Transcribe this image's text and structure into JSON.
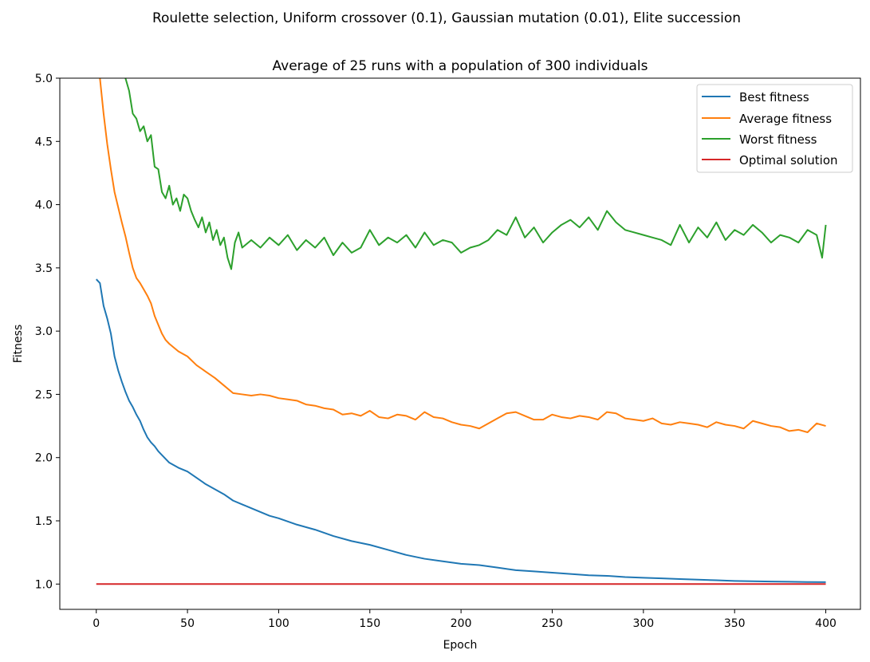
{
  "figure": {
    "suptitle": "Roulette selection, Uniform crossover (0.1), Gaussian mutation (0.01), Elite succession"
  },
  "chart_data": {
    "type": "line",
    "title": "Average of 25 runs with a population of 300 individuals",
    "xlabel": "Epoch",
    "ylabel": "Fitness",
    "xlim": [
      -20,
      419
    ],
    "ylim": [
      0.8,
      5.0
    ],
    "xticks": [
      0,
      50,
      100,
      150,
      200,
      250,
      300,
      350,
      400
    ],
    "yticks": [
      1.0,
      1.5,
      2.0,
      2.5,
      3.0,
      3.5,
      4.0,
      4.5,
      5.0
    ],
    "xtick_labels": [
      "0",
      "50",
      "100",
      "150",
      "200",
      "250",
      "300",
      "350",
      "400"
    ],
    "ytick_labels": [
      "1.0",
      "1.5",
      "2.0",
      "2.5",
      "3.0",
      "3.5",
      "4.0",
      "4.5",
      "5.0"
    ],
    "grid": false,
    "legend_position": "top-right",
    "series": [
      {
        "name": "Best fitness",
        "color": "#1f77b4",
        "x": [
          0,
          2,
          4,
          6,
          8,
          10,
          12,
          14,
          16,
          18,
          20,
          22,
          24,
          26,
          28,
          30,
          32,
          34,
          36,
          38,
          40,
          45,
          50,
          55,
          60,
          65,
          70,
          75,
          80,
          85,
          90,
          95,
          100,
          110,
          120,
          130,
          140,
          150,
          160,
          170,
          180,
          190,
          200,
          210,
          220,
          230,
          240,
          250,
          260,
          270,
          280,
          290,
          300,
          310,
          320,
          330,
          340,
          350,
          360,
          370,
          380,
          390,
          400
        ],
        "values": [
          3.41,
          3.38,
          3.2,
          3.1,
          2.98,
          2.8,
          2.69,
          2.6,
          2.52,
          2.45,
          2.4,
          2.34,
          2.29,
          2.22,
          2.16,
          2.12,
          2.09,
          2.05,
          2.02,
          1.99,
          1.96,
          1.92,
          1.89,
          1.84,
          1.79,
          1.75,
          1.71,
          1.66,
          1.63,
          1.6,
          1.57,
          1.54,
          1.52,
          1.47,
          1.43,
          1.38,
          1.34,
          1.31,
          1.27,
          1.23,
          1.2,
          1.18,
          1.16,
          1.15,
          1.13,
          1.11,
          1.1,
          1.09,
          1.08,
          1.07,
          1.065,
          1.055,
          1.05,
          1.045,
          1.04,
          1.035,
          1.03,
          1.025,
          1.022,
          1.02,
          1.018,
          1.016,
          1.015
        ]
      },
      {
        "name": "Average fitness",
        "color": "#ff7f0e",
        "x": [
          2,
          4,
          6,
          8,
          10,
          12,
          14,
          16,
          18,
          20,
          22,
          24,
          26,
          28,
          30,
          32,
          34,
          36,
          38,
          40,
          45,
          50,
          55,
          60,
          65,
          70,
          75,
          80,
          85,
          90,
          95,
          100,
          105,
          110,
          115,
          120,
          125,
          130,
          135,
          140,
          145,
          150,
          155,
          160,
          165,
          170,
          175,
          180,
          185,
          190,
          195,
          200,
          205,
          210,
          215,
          220,
          225,
          230,
          235,
          240,
          245,
          250,
          255,
          260,
          265,
          270,
          275,
          280,
          285,
          290,
          295,
          300,
          305,
          310,
          315,
          320,
          325,
          330,
          335,
          340,
          345,
          350,
          355,
          360,
          365,
          370,
          375,
          380,
          385,
          390,
          395,
          400
        ],
        "values": [
          5.0,
          4.72,
          4.48,
          4.28,
          4.1,
          3.98,
          3.86,
          3.75,
          3.62,
          3.5,
          3.42,
          3.38,
          3.33,
          3.28,
          3.22,
          3.12,
          3.05,
          2.98,
          2.93,
          2.9,
          2.84,
          2.8,
          2.73,
          2.68,
          2.63,
          2.57,
          2.51,
          2.5,
          2.49,
          2.5,
          2.49,
          2.47,
          2.46,
          2.45,
          2.42,
          2.41,
          2.39,
          2.38,
          2.34,
          2.35,
          2.33,
          2.37,
          2.32,
          2.31,
          2.34,
          2.33,
          2.3,
          2.36,
          2.32,
          2.31,
          2.28,
          2.26,
          2.25,
          2.23,
          2.27,
          2.31,
          2.35,
          2.36,
          2.33,
          2.3,
          2.3,
          2.34,
          2.32,
          2.31,
          2.33,
          2.32,
          2.3,
          2.36,
          2.35,
          2.31,
          2.3,
          2.29,
          2.31,
          2.27,
          2.26,
          2.28,
          2.27,
          2.26,
          2.24,
          2.28,
          2.26,
          2.25,
          2.23,
          2.29,
          2.27,
          2.25,
          2.24,
          2.21,
          2.22,
          2.2,
          2.27,
          2.25
        ]
      },
      {
        "name": "Worst fitness",
        "color": "#2ca02c",
        "x": [
          16,
          18,
          20,
          22,
          24,
          26,
          28,
          30,
          32,
          34,
          36,
          38,
          40,
          42,
          44,
          46,
          48,
          50,
          52,
          54,
          56,
          58,
          60,
          62,
          64,
          66,
          68,
          70,
          72,
          74,
          76,
          78,
          80,
          85,
          90,
          95,
          100,
          105,
          110,
          115,
          120,
          125,
          130,
          135,
          140,
          145,
          150,
          155,
          160,
          165,
          170,
          175,
          180,
          185,
          190,
          195,
          200,
          205,
          210,
          215,
          220,
          225,
          230,
          235,
          240,
          245,
          250,
          255,
          260,
          265,
          270,
          275,
          280,
          285,
          290,
          295,
          300,
          305,
          310,
          315,
          320,
          325,
          330,
          335,
          340,
          345,
          350,
          355,
          360,
          365,
          370,
          375,
          380,
          385,
          390,
          395,
          398,
          400
        ],
        "values": [
          5.0,
          4.9,
          4.72,
          4.68,
          4.58,
          4.62,
          4.5,
          4.55,
          4.3,
          4.28,
          4.1,
          4.05,
          4.15,
          4.0,
          4.05,
          3.95,
          4.08,
          4.05,
          3.95,
          3.88,
          3.82,
          3.9,
          3.78,
          3.86,
          3.72,
          3.8,
          3.68,
          3.74,
          3.58,
          3.49,
          3.7,
          3.78,
          3.66,
          3.72,
          3.66,
          3.74,
          3.68,
          3.76,
          3.64,
          3.72,
          3.66,
          3.74,
          3.6,
          3.7,
          3.62,
          3.66,
          3.8,
          3.68,
          3.74,
          3.7,
          3.76,
          3.66,
          3.78,
          3.68,
          3.72,
          3.7,
          3.62,
          3.66,
          3.68,
          3.72,
          3.8,
          3.76,
          3.9,
          3.74,
          3.82,
          3.7,
          3.78,
          3.84,
          3.88,
          3.82,
          3.9,
          3.8,
          3.95,
          3.86,
          3.8,
          3.78,
          3.76,
          3.74,
          3.72,
          3.68,
          3.84,
          3.7,
          3.82,
          3.74,
          3.86,
          3.72,
          3.8,
          3.76,
          3.84,
          3.78,
          3.7,
          3.76,
          3.74,
          3.7,
          3.8,
          3.76,
          3.58,
          3.84
        ]
      },
      {
        "name": "Optimal solution",
        "color": "#d62728",
        "x": [
          0,
          400
        ],
        "values": [
          1.0,
          1.0
        ]
      }
    ]
  }
}
